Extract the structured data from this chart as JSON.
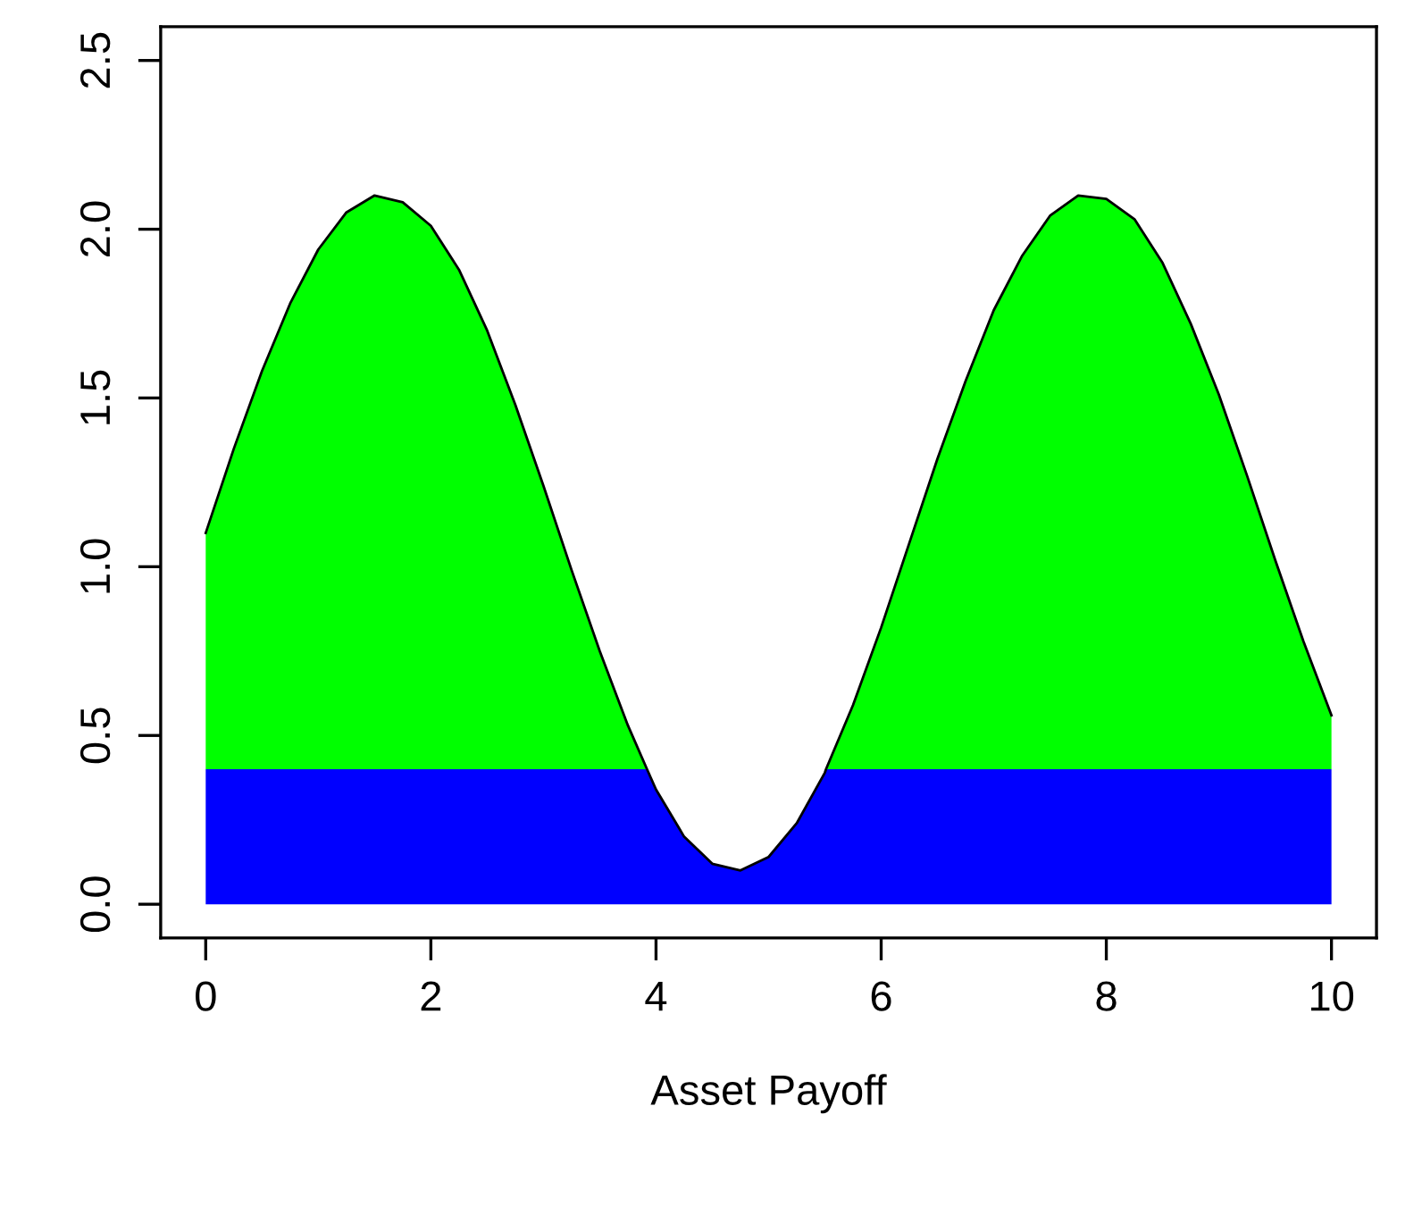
{
  "chart_data": {
    "type": "area",
    "stacked": true,
    "xlabel": "Asset Payoff",
    "x": [
      0,
      0.25,
      0.5,
      0.75,
      1,
      1.25,
      1.5,
      1.75,
      2,
      2.25,
      2.5,
      2.75,
      3,
      3.25,
      3.5,
      3.75,
      3.92,
      4,
      4.25,
      4.5,
      4.75,
      5,
      5.25,
      5.5,
      5.51,
      5.75,
      6,
      6.25,
      6.5,
      6.75,
      7,
      7.25,
      7.5,
      7.75,
      8,
      8.25,
      8.5,
      8.75,
      9,
      9.25,
      9.5,
      9.75,
      10
    ],
    "series": [
      {
        "color": "#0000ff",
        "values": [
          0.4,
          0.4,
          0.4,
          0.4,
          0.4,
          0.4,
          0.4,
          0.4,
          0.4,
          0.4,
          0.4,
          0.4,
          0.4,
          0.4,
          0.4,
          0.4,
          0.4,
          0.34,
          0.2,
          0.12,
          0.1,
          0.14,
          0.24,
          0.39,
          0.4,
          0.4,
          0.4,
          0.4,
          0.4,
          0.4,
          0.4,
          0.4,
          0.4,
          0.4,
          0.4,
          0.4,
          0.4,
          0.4,
          0.4,
          0.4,
          0.4,
          0.4,
          0.4
        ]
      },
      {
        "color": "#00ff00",
        "values": [
          0.7,
          0.95,
          1.18,
          1.38,
          1.54,
          1.65,
          1.7,
          1.68,
          1.61,
          1.48,
          1.3,
          1.08,
          0.84,
          0.59,
          0.35,
          0.13,
          0,
          0,
          0,
          0,
          0,
          0,
          0,
          0,
          0,
          0.19,
          0.42,
          0.67,
          0.92,
          1.15,
          1.36,
          1.52,
          1.64,
          1.7,
          1.69,
          1.63,
          1.5,
          1.32,
          1.11,
          0.87,
          0.62,
          0.38,
          0.16
        ]
      }
    ],
    "xlim": [
      -0.4,
      10.4
    ],
    "ylim": [
      -0.1,
      2.6
    ],
    "xticks": [
      0,
      2,
      4,
      6,
      8,
      10
    ],
    "yticks": [
      {
        "value": 0,
        "label": "0.0"
      },
      {
        "value": 0.5,
        "label": "0.5"
      },
      {
        "value": 1,
        "label": "1.0"
      },
      {
        "value": 1.5,
        "label": "1.5"
      },
      {
        "value": 2,
        "label": "2.0"
      },
      {
        "value": 2.5,
        "label": "2.5"
      }
    ],
    "grid": false,
    "legend": false
  }
}
